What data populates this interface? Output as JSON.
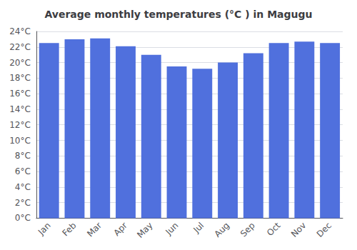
{
  "chart_data": {
    "type": "bar",
    "title": "Average monthly temperatures (°C ) in Magugu",
    "categories": [
      "Jan",
      "Feb",
      "Mar",
      "Apr",
      "May",
      "Jun",
      "Jul",
      "Aug",
      "Sep",
      "Oct",
      "Nov",
      "Dec"
    ],
    "values": [
      22.5,
      23.0,
      23.1,
      22.1,
      21.0,
      19.5,
      19.2,
      20.0,
      21.2,
      22.5,
      22.7,
      22.5
    ],
    "ylim": [
      0,
      24
    ],
    "yticks": [
      {
        "value": 0,
        "label": "0°C"
      },
      {
        "value": 2,
        "label": "2°C"
      },
      {
        "value": 4,
        "label": "4°C"
      },
      {
        "value": 6,
        "label": "6°C"
      },
      {
        "value": 8,
        "label": "8°C"
      },
      {
        "value": 10,
        "label": "10°C"
      },
      {
        "value": 12,
        "label": "12°C"
      },
      {
        "value": 14,
        "label": "14°C"
      },
      {
        "value": 16,
        "label": "16°C"
      },
      {
        "value": 18,
        "label": "18°C"
      },
      {
        "value": 20,
        "label": "20°C"
      },
      {
        "value": 22,
        "label": "22°C"
      },
      {
        "value": 24,
        "label": "24°C"
      }
    ],
    "grid": true
  }
}
